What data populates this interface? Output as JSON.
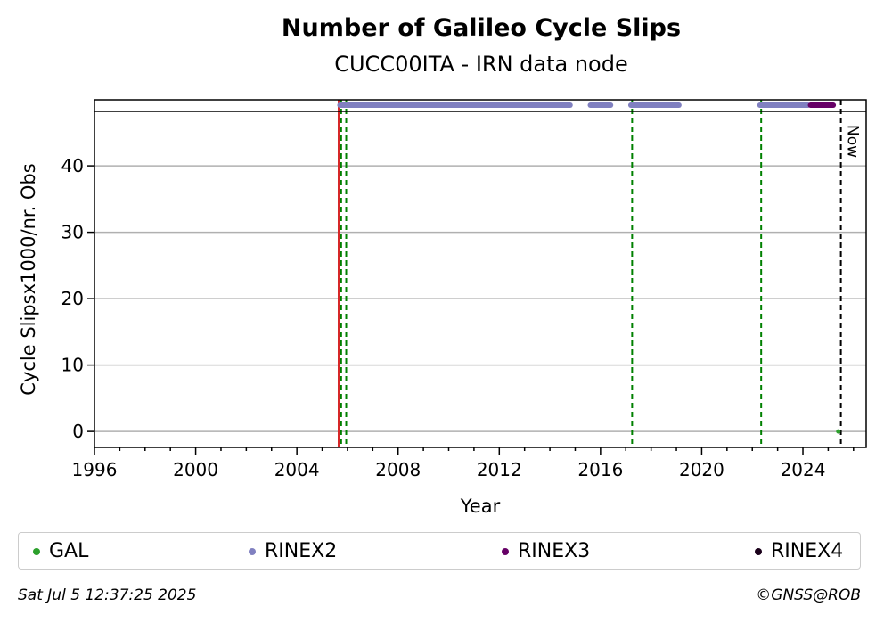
{
  "chart_data": {
    "type": "scatter",
    "title": "Number of Galileo Cycle Slips",
    "subtitle": "CUCC00ITA - IRN data node",
    "xlabel": "Year",
    "ylabel": "Cycle Slipsx1000/nr. Obs",
    "xlim": [
      1996,
      2026.5
    ],
    "ylim": [
      -2.4,
      48.2
    ],
    "xticks": [
      "1996",
      "2000",
      "2004",
      "2008",
      "2012",
      "2016",
      "2020",
      "2024"
    ],
    "yticks": [
      "0",
      "10",
      "20",
      "30",
      "40"
    ],
    "xtick_values": [
      1996,
      2000,
      2004,
      2008,
      2012,
      2016,
      2020,
      2024
    ],
    "ytick_values": [
      0,
      10,
      20,
      30,
      40
    ],
    "grid": "horizontal",
    "series": [
      {
        "name": "GAL",
        "color": "#2ca02c",
        "points": [
          [
            2025.4,
            0
          ]
        ]
      },
      {
        "name": "RINEX2",
        "color": "#8080c0",
        "segments": [
          [
            2005.7,
            2014.8
          ],
          [
            2015.6,
            2016.4
          ],
          [
            2017.2,
            2019.1
          ],
          [
            2022.3,
            2024.2
          ]
        ]
      },
      {
        "name": "RINEX3",
        "color": "#660066",
        "segments": [
          [
            2024.3,
            2025.2
          ]
        ]
      },
      {
        "name": "RINEX4",
        "color": "#1a001a",
        "segments": []
      }
    ],
    "vlines": [
      {
        "x": 2005.65,
        "color": "#d62728",
        "style": "solid"
      },
      {
        "x": 2005.75,
        "color": "#008000",
        "style": "dashed"
      },
      {
        "x": 2005.95,
        "color": "#008000",
        "style": "dashed"
      },
      {
        "x": 2017.25,
        "color": "#008000",
        "style": "dashed"
      },
      {
        "x": 2022.35,
        "color": "#008000",
        "style": "dashed"
      },
      {
        "x": 2025.5,
        "color": "#000000",
        "style": "dashed",
        "label": "Now"
      }
    ],
    "legend_position": "bottom"
  },
  "legend": [
    {
      "label": "GAL",
      "color": "#2ca02c"
    },
    {
      "label": "RINEX2",
      "color": "#8080c0"
    },
    {
      "label": "RINEX3",
      "color": "#660066"
    },
    {
      "label": "RINEX4",
      "color": "#1a001a"
    }
  ],
  "footer": {
    "timestamp": "Sat Jul  5 12:37:25 2025",
    "credit": "©GNSS@ROB"
  }
}
